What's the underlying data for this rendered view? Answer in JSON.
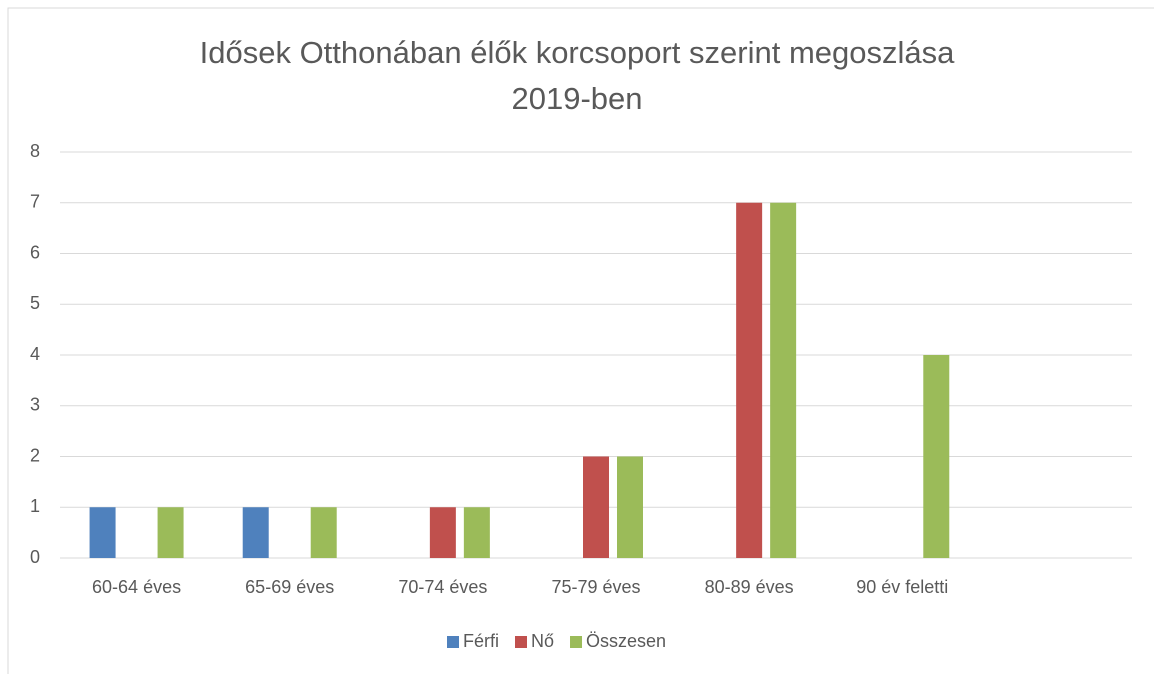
{
  "chart_data": {
    "type": "bar",
    "title": "Idősek Otthonában élők korcsoport szerint megoszlása 2019-ben",
    "categories": [
      "60-64 éves",
      "65-69 éves",
      "70-74 éves",
      "75-79 éves",
      "80-89 éves",
      "90 év feletti",
      null
    ],
    "series": [
      {
        "name": "Férfi",
        "color": "#4f81bd",
        "values": [
          1,
          1,
          null,
          null,
          null,
          null,
          null
        ]
      },
      {
        "name": "Nő",
        "color": "#c0504d",
        "values": [
          null,
          null,
          1,
          2,
          7,
          null,
          null
        ]
      },
      {
        "name": "Összesen",
        "color": "#9bbb59",
        "values": [
          1,
          1,
          1,
          2,
          7,
          4,
          null
        ]
      }
    ],
    "ylim": [
      0,
      8
    ],
    "yticks": [
      0,
      1,
      2,
      3,
      4,
      5,
      6,
      7,
      8
    ],
    "grid": true,
    "legend": "bottom"
  }
}
